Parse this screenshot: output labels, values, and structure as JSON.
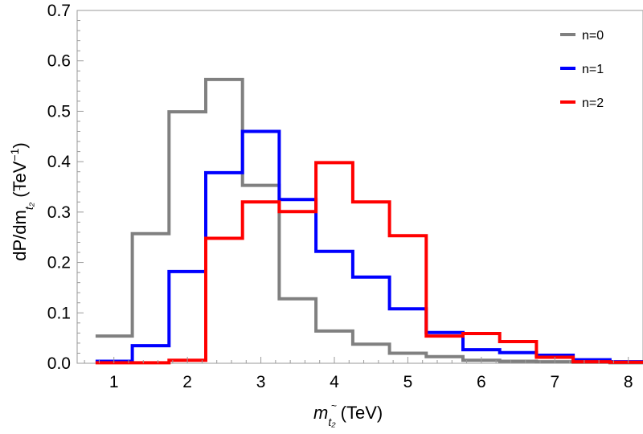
{
  "chart_data": {
    "type": "line",
    "style": "step-histogram",
    "bin_edges": [
      0.75,
      1.25,
      1.75,
      2.25,
      2.75,
      3.25,
      3.75,
      4.25,
      4.75,
      5.25,
      5.75,
      6.25,
      6.75,
      7.25,
      7.75,
      8.25
    ],
    "series": [
      {
        "name": "n=0",
        "color": "#808080",
        "values": [
          0.054,
          0.257,
          0.499,
          0.563,
          0.353,
          0.128,
          0.064,
          0.038,
          0.02,
          0.013,
          0.006,
          0.004,
          0.003,
          0.002,
          0.001
        ]
      },
      {
        "name": "n=1",
        "color": "#0000ff",
        "values": [
          0.004,
          0.035,
          0.182,
          0.378,
          0.46,
          0.325,
          0.222,
          0.171,
          0.108,
          0.061,
          0.027,
          0.021,
          0.016,
          0.007,
          0.003
        ]
      },
      {
        "name": "n=2",
        "color": "#ff0000",
        "values": [
          0.001,
          0.001,
          0.006,
          0.248,
          0.32,
          0.301,
          0.398,
          0.32,
          0.253,
          0.054,
          0.059,
          0.043,
          0.012,
          0.003,
          0.002
        ]
      }
    ],
    "xlim": [
      0.5,
      8.2
    ],
    "ylim": [
      0,
      0.7
    ],
    "x_ticks": [
      1,
      2,
      3,
      4,
      5,
      6,
      7,
      8
    ],
    "x_tick_labels": [
      "1",
      "2",
      "3",
      "4",
      "5",
      "6",
      "7",
      "8"
    ],
    "y_ticks": [
      0.0,
      0.1,
      0.2,
      0.3,
      0.4,
      0.5,
      0.6,
      0.7
    ],
    "y_tick_labels": [
      "0.0",
      "0.1",
      "0.2",
      "0.3",
      "0.4",
      "0.5",
      "0.6",
      "0.7"
    ],
    "xlabel": {
      "main": "m",
      "sub": "t₂",
      "accent": "~",
      "unit": " (TeV)"
    },
    "ylabel": {
      "prefix": "dP/dm",
      "sub": "t₂",
      "accent": "~",
      "unit_open": " (TeV",
      "unit_exp": "−1",
      "unit_close": ")"
    },
    "legend_position": "top-right",
    "grid": false
  }
}
